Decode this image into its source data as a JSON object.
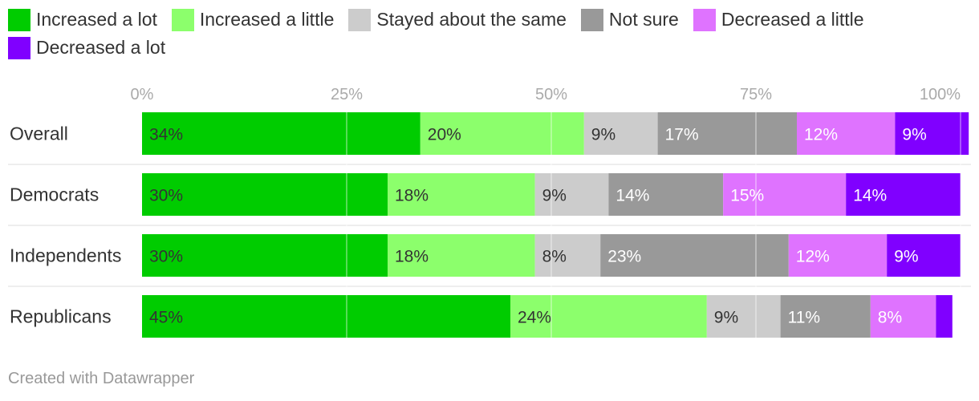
{
  "chart_data": {
    "type": "bar",
    "orientation": "horizontal",
    "stacked": true,
    "categories": [
      "Overall",
      "Democrats",
      "Independents",
      "Republicans"
    ],
    "series": [
      {
        "name": "Increased a lot",
        "color": "#00cc00",
        "values": [
          34,
          30,
          30,
          45
        ]
      },
      {
        "name": "Increased a little",
        "color": "#8cff6c",
        "values": [
          20,
          18,
          18,
          24
        ]
      },
      {
        "name": "Stayed about the same",
        "color": "#cccccc",
        "values": [
          9,
          9,
          8,
          9
        ]
      },
      {
        "name": "Not sure",
        "color": "#999999",
        "values": [
          17,
          14,
          23,
          11
        ]
      },
      {
        "name": "Decreased a little",
        "color": "#df73ff",
        "values": [
          12,
          15,
          12,
          8
        ]
      },
      {
        "name": "Decreased a lot",
        "color": "#8000ff",
        "values": [
          9,
          14,
          9,
          2
        ]
      }
    ],
    "value_labels": [
      [
        "34%",
        "20%",
        "9%",
        "17%",
        "12%",
        "9%"
      ],
      [
        "30%",
        "18%",
        "9%",
        "14%",
        "15%",
        "14%"
      ],
      [
        "30%",
        "18%",
        "8%",
        "23%",
        "12%",
        "9%"
      ],
      [
        "45%",
        "24%",
        "9%",
        "11%",
        "8%",
        ""
      ]
    ],
    "x_ticks": [
      0,
      25,
      50,
      75,
      100
    ],
    "x_tick_labels": [
      "0%",
      "25%",
      "50%",
      "75%",
      "100%"
    ],
    "xlim": [
      0,
      100
    ],
    "grid": true,
    "legend_position": "top-left"
  },
  "footer": {
    "credit": "Created with Datawrapper"
  }
}
